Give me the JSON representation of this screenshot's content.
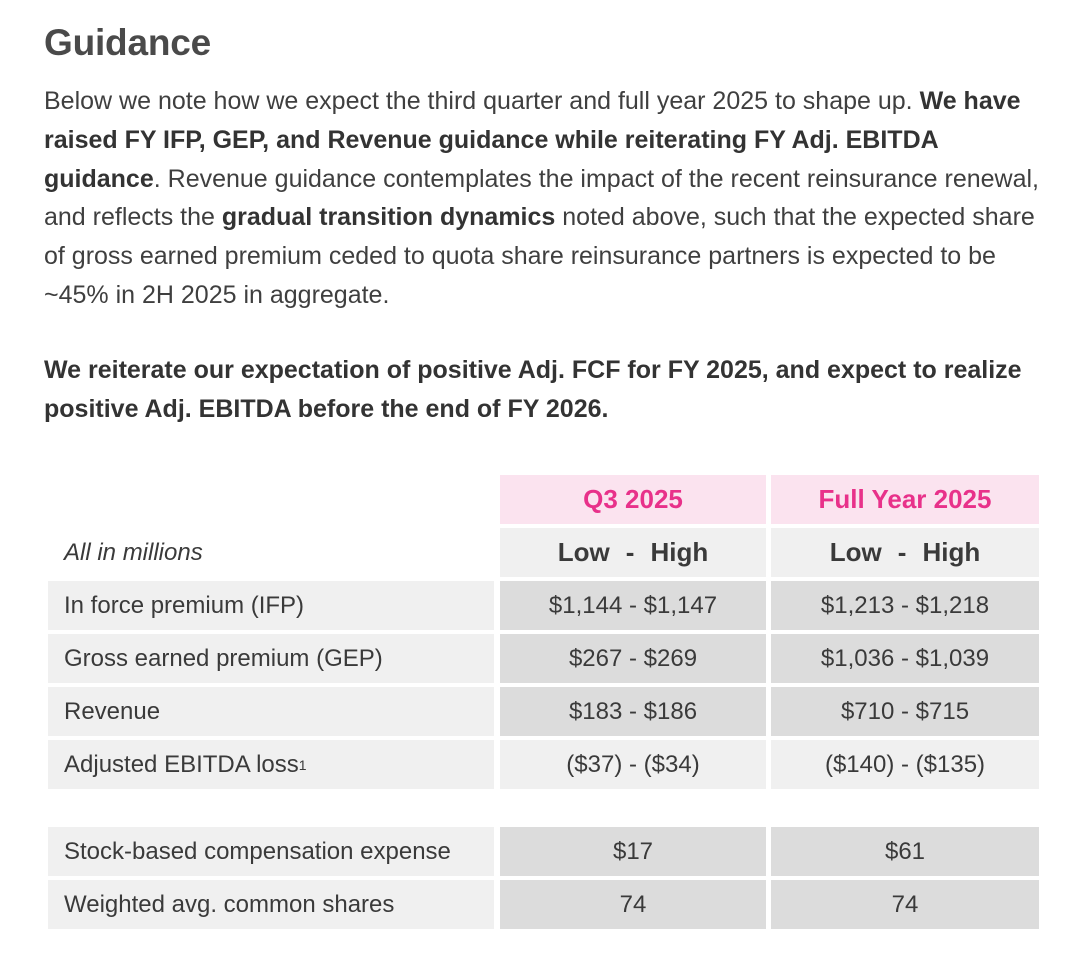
{
  "heading": "Guidance",
  "paragraph1": {
    "t1": "Below we note how we expect the third quarter and full year 2025 to shape up. ",
    "b1": "We have raised FY IFP, GEP, and Revenue guidance while reiterating FY Adj. EBITDA guidance",
    "t2": ". Revenue guidance contemplates the impact of the recent reinsurance renewal, and reflects the ",
    "b2": "gradual transition dynamics",
    "t3": " noted above, such that the expected share of gross earned premium ceded to quota share reinsurance partners is expected to be ~45% in 2H 2025 in aggregate."
  },
  "paragraph2": "We reiterate our expectation of positive Adj. FCF for FY 2025, and expect to realize positive Adj. EBITDA before the end of FY 2026.",
  "table": {
    "columns": [
      "Q3 2025",
      "Full Year 2025"
    ],
    "units_label": "All in millions",
    "range_labels": {
      "low": "Low",
      "sep": "-",
      "high": "High"
    },
    "rows": [
      {
        "label": "In force premium (IFP)",
        "q3": "$1,144 - $1,147",
        "fy": "$1,213 - $1,218"
      },
      {
        "label": "Gross earned premium (GEP)",
        "q3": "$267 - $269",
        "fy": "$1,036 - $1,039"
      },
      {
        "label": "Revenue",
        "q3": "$183 - $186",
        "fy": "$710 - $715"
      },
      {
        "label": "Adjusted EBITDA loss",
        "footnote": "1",
        "q3": "($37) - ($34)",
        "fy": "($140) - ($135)"
      }
    ],
    "extra_rows": [
      {
        "label": "Stock-based compensation expense",
        "q3": "$17",
        "fy": "$61"
      },
      {
        "label": "Weighted avg. common shares",
        "q3": "74",
        "fy": "74"
      }
    ]
  },
  "colors": {
    "accent_pink": "#e8318a",
    "header_bg_pink": "#fbe3ef",
    "label_bg": "#f0f0f0",
    "value_bg": "#dcdcdc"
  }
}
